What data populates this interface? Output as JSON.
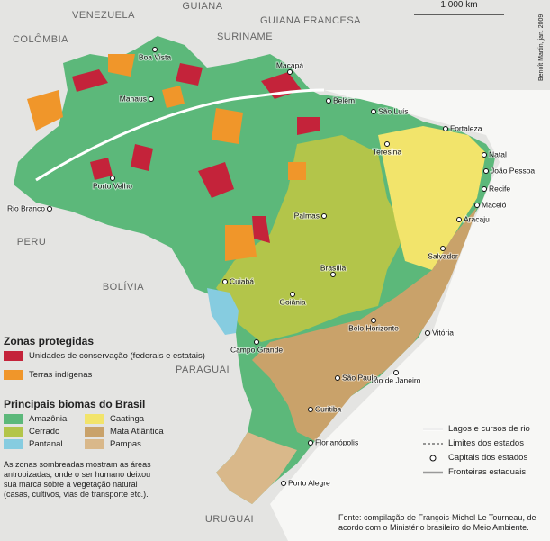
{
  "map": {
    "scale": "1 000 km",
    "credit": "Benoît Martin, jan. 2009",
    "countries": [
      "VENEZUELA",
      "GUIANA",
      "GUIANA FRANCESA",
      "SURINAME",
      "COLÔMBIA",
      "PERU",
      "BOLÍVIA",
      "PARAGUAI",
      "URUGUAI"
    ],
    "cities": [
      "Boa Vista",
      "Macapá",
      "Belém",
      "São Luís",
      "Fortaleza",
      "Teresina",
      "Natal",
      "João Pessoa",
      "Recife",
      "Maceió",
      "Aracaju",
      "Salvador",
      "Manaus",
      "Porto Velho",
      "Rio Branco",
      "Palmas",
      "Brasília",
      "Cuiabá",
      "Goiânia",
      "Belo Horizonte",
      "Vitória",
      "Campo Grande",
      "Rio de Janeiro",
      "São Paulo",
      "Curitiba",
      "Florianópolis",
      "Porto Alegre"
    ]
  },
  "legend": {
    "protected_title": "Zonas protegidas",
    "protected": [
      "Unidades de conservação (federais e estatais)",
      "Terras indígenas"
    ],
    "biomes_title": "Principais biomas do Brasil",
    "biomes": [
      "Amazônia",
      "Cerrado",
      "Pantanal",
      "Caatinga",
      "Mata Atlântica",
      "Pampas"
    ],
    "note": "As zonas sombreadas mostram as áreas antropizadas, onde o ser humano deixou sua marca sobre a vegetação natural (casas, cultivos, vias de transporte etc.).",
    "lines": [
      "Lagos e cursos de rio",
      "Limites dos estados",
      "Capitais dos estados",
      "Fronteiras estaduais"
    ]
  },
  "source": "Fonte: compilação de François-Michel Le Tourneau, de acordo com o Ministério brasileiro do Meio Ambiente."
}
